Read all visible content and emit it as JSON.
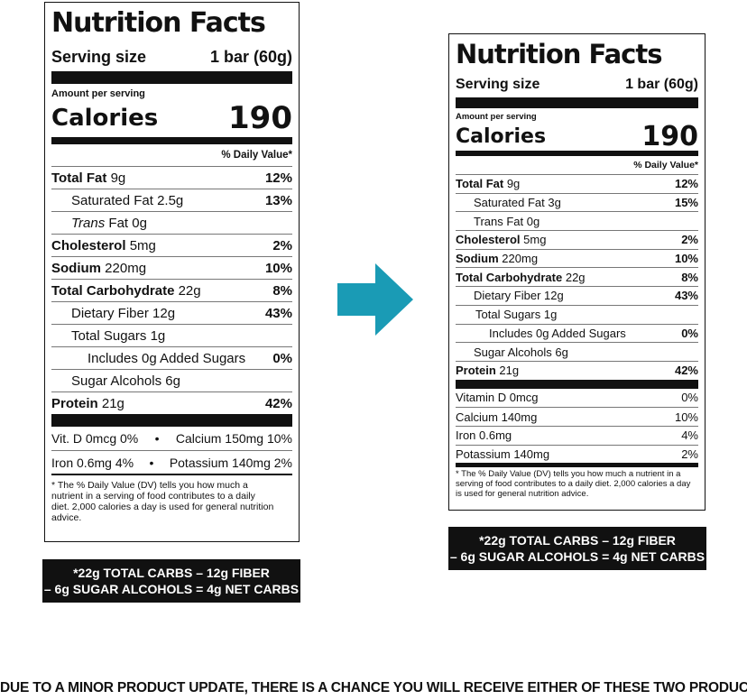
{
  "left_label": {
    "title": "Nutrition Facts",
    "serving_label": "Serving size",
    "serving_value": "1 bar (60g)",
    "amount_label": "Amount per serving",
    "calories_label": "Calories",
    "calories_value": "190",
    "dv_header": "% Daily Value*",
    "nutrients": [
      {
        "name": "Total Fat",
        "amount": "9g",
        "dv": "12%"
      },
      {
        "name": "Saturated Fat",
        "amount": "2.5g",
        "dv": "13%"
      },
      {
        "name_italic": "Trans",
        "name": "Fat",
        "amount": "0g"
      },
      {
        "name": "Cholesterol",
        "amount": "5mg",
        "dv": "2%"
      },
      {
        "name": "Sodium",
        "amount": "220mg",
        "dv": "10%"
      },
      {
        "name": "Total Carbohydrate",
        "amount": "22g",
        "dv": "8%"
      },
      {
        "name": "Dietary Fiber",
        "amount": "12g",
        "dv": "43%"
      },
      {
        "name": "Total Sugars",
        "amount": "1g"
      },
      {
        "name": "Includes 0g Added Sugars",
        "dv": "0%"
      },
      {
        "name": "Sugar Alcohols",
        "amount": "6g"
      },
      {
        "name": "Protein",
        "amount": "21g",
        "dv": "42%"
      }
    ],
    "vitamin_rows": [
      {
        "left": "Vit. D 0mcg 0%",
        "separator": "•",
        "right": "Calcium 150mg 10%"
      },
      {
        "left": "Iron 0.6mg 4%",
        "separator": "•",
        "right": "Potassium 140mg 2%"
      }
    ],
    "footnote": "* The % Daily Value (DV) tells you how much a nutrient in a serving of food contributes to a daily diet. 2,000 calories a day is used for general nutrition advice.",
    "net_carbs": [
      "*22g TOTAL CARBS – 12g FIBER",
      "– 6g SUGAR ALCOHOLS = 4g NET CARBS"
    ]
  },
  "right_label": {
    "title": "Nutrition Facts",
    "serving_label": "Serving size",
    "serving_value": "1 bar (60g)",
    "amount_label": "Amount per serving",
    "calories_label": "Calories",
    "calories_value": "190",
    "dv_header": "% Daily Value*",
    "nutrients": [
      {
        "name": "Total Fat",
        "amount": "9g",
        "dv": "12%"
      },
      {
        "name": "Saturated Fat",
        "amount": "3g",
        "dv": "15%"
      },
      {
        "name": "Trans Fat",
        "amount": "0g"
      },
      {
        "name": "Cholesterol",
        "amount": "5mg",
        "dv": "2%"
      },
      {
        "name": "Sodium",
        "amount": "220mg",
        "dv": "10%"
      },
      {
        "name": "Total Carbohydrate",
        "amount": "22g",
        "dv": "8%"
      },
      {
        "name": "Dietary Fiber",
        "amount": "12g",
        "dv": "43%"
      },
      {
        "name": "Total Sugars",
        "amount": "1g"
      },
      {
        "name": "Includes 0g Added Sugars",
        "dv": "0%"
      },
      {
        "name": "Sugar Alcohols",
        "amount": "6g"
      },
      {
        "name": "Protein",
        "amount": "21g",
        "dv": "42%"
      }
    ],
    "vitamins": [
      {
        "name": "Vitamin D",
        "amount": "0mcg",
        "dv": "0%"
      },
      {
        "name": "Calcium",
        "amount": "140mg",
        "dv": "10%"
      },
      {
        "name": "Iron",
        "amount": "0.6mg",
        "dv": "4%"
      },
      {
        "name": "Potassium",
        "amount": "140mg",
        "dv": "2%"
      }
    ],
    "footnote": "* The % Daily Value (DV) tells you how much a nutrient in a serving of food contributes to a daily diet. 2,000 calories a day is used for general nutrition advice.",
    "net_carbs": [
      "*22g TOTAL CARBS – 12g FIBER",
      "– 6g SUGAR ALCOHOLS = 4g NET CARBS"
    ]
  },
  "footer": "DUE TO A MINOR PRODUCT UPDATE, THERE IS A CHANCE YOU WILL RECEIVE EITHER OF THESE TWO PRODUCTS"
}
